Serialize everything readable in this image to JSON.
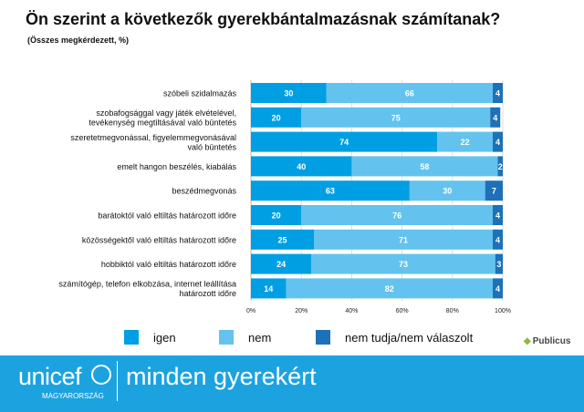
{
  "title": "Ön szerint a következők gyerekbántalmazásnak számítanak?",
  "subtitle": "(Összes megkérdezett, %)",
  "chart_data": {
    "type": "bar",
    "orientation": "horizontal-stacked-100",
    "categories": [
      [
        "szóbeli szidalmazás"
      ],
      [
        "szobafogsággal vagy játék elvételével,",
        "tevékenység megtiltásával való büntetés"
      ],
      [
        "szeretetmegvonással, figyelemmegvonásával",
        "való büntetés"
      ],
      [
        "emelt hangon beszélés, kiabálás"
      ],
      [
        "beszédmegvonás"
      ],
      [
        "barátoktól való eltiltás határozott időre"
      ],
      [
        "közösségektől való eltiltás határozott időre"
      ],
      [
        "hobbiktól való eltiltás határozott időre"
      ],
      [
        "számítógép, telefon elkobzása, internet leállítása",
        "határozott időre"
      ]
    ],
    "series": [
      {
        "name": "igen",
        "color": "#009fe3",
        "values": [
          30,
          20,
          74,
          40,
          63,
          20,
          25,
          24,
          14
        ]
      },
      {
        "name": "nem",
        "color": "#63c3ee",
        "values": [
          66,
          75,
          22,
          58,
          30,
          76,
          71,
          73,
          82
        ]
      },
      {
        "name": "nem tudja/nem válaszolt",
        "color": "#1d71b8",
        "values": [
          4,
          4,
          4,
          2,
          7,
          4,
          4,
          3,
          4
        ]
      }
    ],
    "xticks": [
      "0%",
      "20%",
      "40%",
      "60%",
      "80%",
      "100%"
    ],
    "xlim": [
      0,
      100
    ],
    "grid": true,
    "legend": "bottom"
  },
  "brand": {
    "publicus": "Publicus",
    "unicef": "unicef",
    "country": "MAGYARORSZÁG",
    "tagline": "minden gyerekért"
  }
}
